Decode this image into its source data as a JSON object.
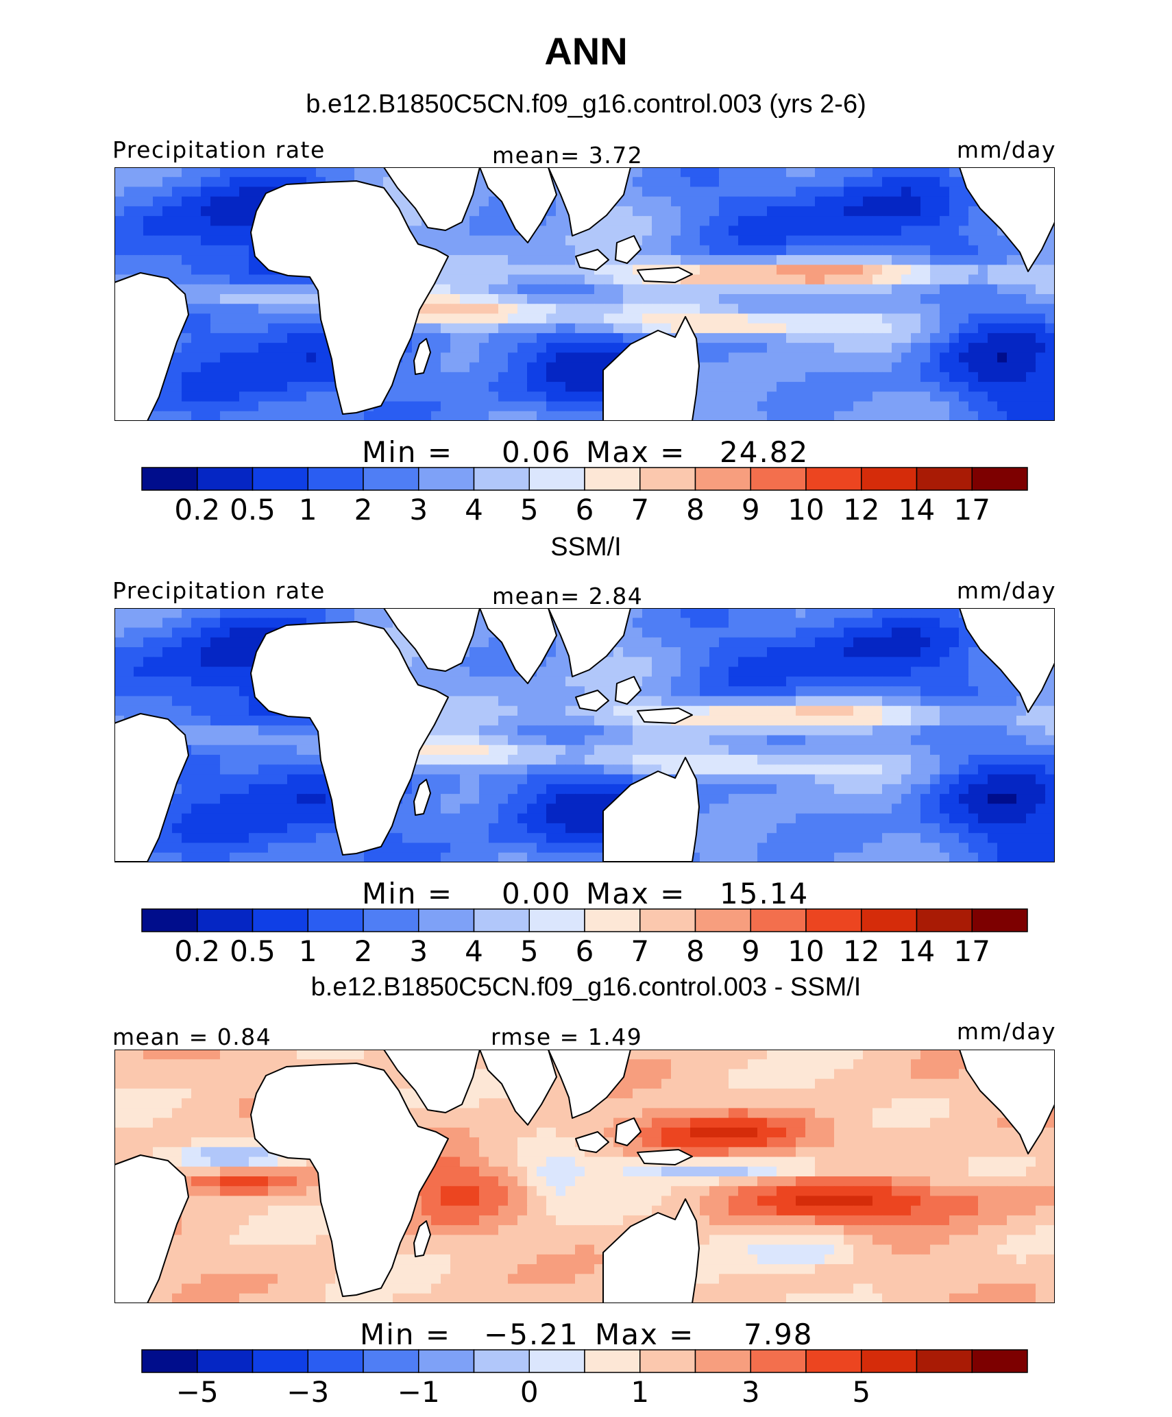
{
  "figure": {
    "title": "ANN"
  },
  "chart_data": [
    {
      "type": "heatmap",
      "case_title": "b.e12.B1850C5CN.f09_g16.control.003 (yrs 2-6)",
      "left_label": "Precipitation rate",
      "center_label": "mean=   3.72",
      "units": "mm/day",
      "min_label": "Min  =",
      "min_value": "0.06",
      "max_label": "Max  =",
      "max_value": "24.82",
      "colorbar_ticks": [
        "0.2",
        "0.5",
        "1",
        "2",
        "3",
        "4",
        "5",
        "6",
        "7",
        "8",
        "9",
        "10",
        "12",
        "14",
        "17"
      ],
      "itcz_intensity": 0.85,
      "ocean_scale": 1.0,
      "ocean_bias": 0.0
    },
    {
      "type": "heatmap",
      "case_title": "SSM/I",
      "left_label": "Precipitation rate",
      "center_label": "mean=   2.84",
      "units": "mm/day",
      "min_label": "Min  =",
      "min_value": "0.00",
      "max_label": "Max  =",
      "max_value": "15.14",
      "colorbar_ticks": [
        "0.2",
        "0.5",
        "1",
        "2",
        "3",
        "4",
        "5",
        "6",
        "7",
        "8",
        "9",
        "10",
        "12",
        "14",
        "17"
      ],
      "itcz_intensity": 0.65,
      "ocean_scale": 1.0,
      "ocean_bias": -0.05
    },
    {
      "type": "heatmap",
      "case_title": "b.e12.B1850C5CN.f09_g16.control.003 - SSM/I",
      "left_label": "mean =   0.84",
      "center_label": "rmse  =   1.49",
      "units": "mm/day",
      "min_label": "Min  =",
      "min_value": "−5.21",
      "max_label": "Max  =",
      "max_value": "7.98",
      "colorbar_ticks": [
        "−5",
        "",
        "−3",
        "",
        "−1",
        "",
        "0",
        "",
        "1",
        "",
        "3",
        "",
        "5",
        "",
        ""
      ],
      "itcz_intensity": 0.6,
      "ocean_scale": 1.0,
      "ocean_bias": 0.0
    }
  ],
  "colors": {
    "palette": [
      "#000d8c",
      "#0526c4",
      "#0f3fe6",
      "#2a5df2",
      "#4f7ef5",
      "#7ea1f7",
      "#b1c7fa",
      "#dbe6fd",
      "#fde7d6",
      "#fbc8ae",
      "#f79e7e",
      "#f36f4d",
      "#ec4520",
      "#d52c0a",
      "#a91b05",
      "#7d0000"
    ],
    "land": "#ffffff",
    "frame": "#000000"
  }
}
